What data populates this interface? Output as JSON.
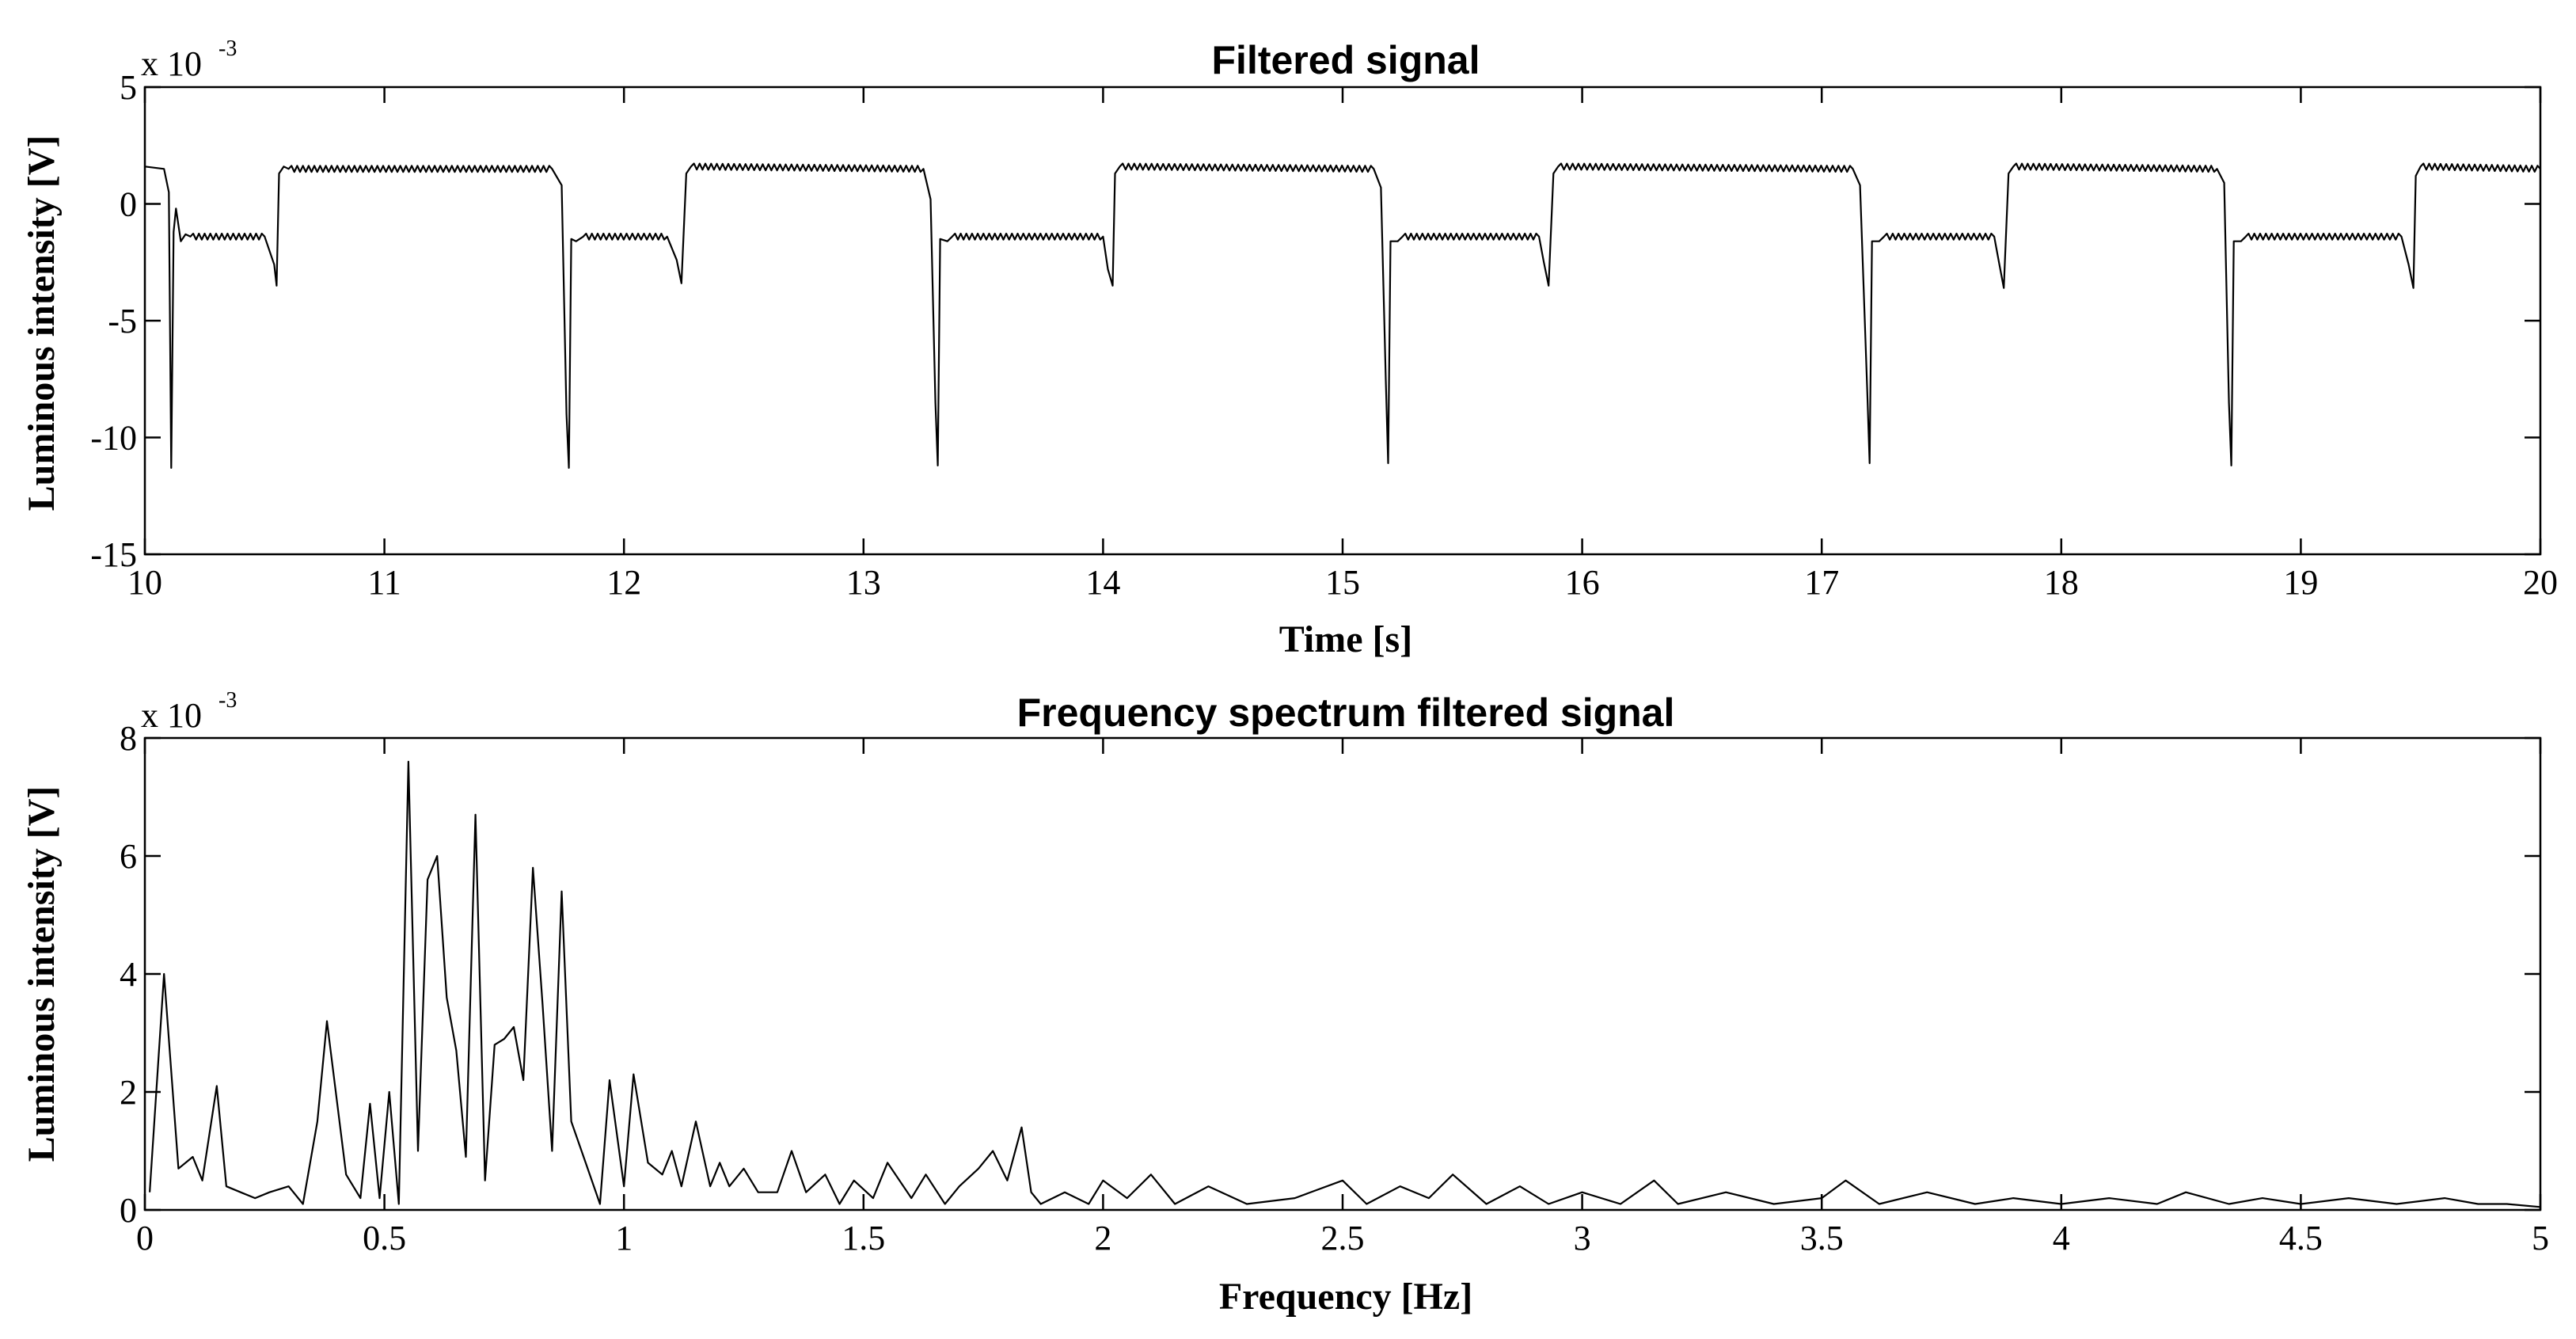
{
  "chart_data": [
    {
      "type": "line",
      "title": "Filtered signal",
      "xlabel": "Time [s]",
      "ylabel": "Luminous intensity [V]",
      "y_multiplier": {
        "base": "x 10",
        "exponent": "-3"
      },
      "xlim": [
        10,
        20
      ],
      "ylim": [
        -15,
        5
      ],
      "xticks": [
        10,
        11,
        12,
        13,
        14,
        15,
        16,
        17,
        18,
        19,
        20
      ],
      "xtick_labels": [
        "10",
        "11",
        "12",
        "13",
        "14",
        "15",
        "16",
        "17",
        "18",
        "19",
        "20"
      ],
      "yticks": [
        -15,
        -10,
        -5,
        0,
        5
      ],
      "ytick_labels": [
        "-15",
        "-10",
        "-5",
        "0",
        "5"
      ],
      "grid": false,
      "legend": "none",
      "line_color": "#000000",
      "high_level": 1.5,
      "low_level": -1.4,
      "series": [
        {
          "x": [
            10.0,
            10.08,
            10.1,
            10.11,
            10.12,
            10.13,
            10.15,
            10.17,
            10.19,
            10.5,
            10.54,
            10.55,
            10.56,
            10.58,
            10.6,
            11.7,
            11.74,
            11.76,
            11.77,
            11.78,
            11.8,
            11.83,
            12.18,
            12.22,
            12.24,
            12.26,
            12.28,
            13.25,
            13.28,
            13.3,
            13.31,
            13.32,
            13.35,
            13.37,
            14.0,
            14.02,
            14.04,
            14.05,
            14.07,
            15.13,
            15.16,
            15.18,
            15.19,
            15.2,
            15.23,
            15.25,
            15.82,
            15.84,
            15.86,
            15.88,
            15.9,
            17.13,
            17.16,
            17.19,
            17.2,
            17.21,
            17.24,
            17.26,
            17.72,
            17.74,
            17.76,
            17.78,
            17.8,
            18.65,
            18.68,
            18.7,
            18.71,
            18.72,
            18.75,
            18.77,
            19.42,
            19.45,
            19.47,
            19.48,
            19.5,
            20.0
          ],
          "y": [
            1.6,
            1.5,
            0.5,
            -11.3,
            -1.2,
            -0.2,
            -1.6,
            -1.3,
            -1.4,
            -1.4,
            -2.6,
            -3.5,
            1.3,
            1.6,
            1.5,
            1.5,
            0.8,
            -9.0,
            -11.3,
            -1.5,
            -1.6,
            -1.4,
            -1.4,
            -2.4,
            -3.4,
            1.3,
            1.6,
            1.5,
            0.2,
            -8.5,
            -11.2,
            -1.5,
            -1.6,
            -1.4,
            -1.4,
            -2.8,
            -3.5,
            1.3,
            1.6,
            1.5,
            0.7,
            -7.5,
            -11.1,
            -1.6,
            -1.6,
            -1.4,
            -1.4,
            -2.5,
            -3.5,
            1.3,
            1.6,
            1.5,
            0.8,
            -8.0,
            -11.1,
            -1.6,
            -1.6,
            -1.4,
            -1.4,
            -2.5,
            -3.6,
            1.3,
            1.6,
            1.5,
            0.9,
            -8.5,
            -11.2,
            -1.6,
            -1.6,
            -1.4,
            -1.4,
            -2.6,
            -3.6,
            1.2,
            1.6,
            1.5
          ]
        }
      ]
    },
    {
      "type": "line",
      "title": "Frequency spectrum filtered signal",
      "xlabel": "Frequency [Hz]",
      "ylabel": "Luminous intensity [V]",
      "y_multiplier": {
        "base": "x 10",
        "exponent": "-3"
      },
      "xlim": [
        0,
        5
      ],
      "ylim": [
        0,
        8
      ],
      "xticks": [
        0,
        0.5,
        1,
        1.5,
        2,
        2.5,
        3,
        3.5,
        4,
        4.5,
        5
      ],
      "xtick_labels": [
        "0",
        "0.5",
        "1",
        "1.5",
        "2",
        "2.5",
        "3",
        "3.5",
        "4",
        "4.5",
        "5"
      ],
      "yticks": [
        0,
        2,
        4,
        6,
        8
      ],
      "ytick_labels": [
        "0",
        "2",
        "4",
        "6",
        "8"
      ],
      "grid": false,
      "legend": "none",
      "line_color": "#000000",
      "series": [
        {
          "x": [
            0.01,
            0.04,
            0.07,
            0.1,
            0.12,
            0.15,
            0.17,
            0.2,
            0.23,
            0.26,
            0.3,
            0.33,
            0.36,
            0.38,
            0.42,
            0.45,
            0.47,
            0.49,
            0.51,
            0.53,
            0.55,
            0.57,
            0.59,
            0.61,
            0.63,
            0.65,
            0.67,
            0.69,
            0.71,
            0.73,
            0.75,
            0.77,
            0.79,
            0.81,
            0.83,
            0.85,
            0.87,
            0.89,
            0.92,
            0.95,
            0.97,
            1.0,
            1.02,
            1.05,
            1.08,
            1.1,
            1.12,
            1.15,
            1.18,
            1.2,
            1.22,
            1.25,
            1.28,
            1.32,
            1.35,
            1.38,
            1.42,
            1.45,
            1.48,
            1.52,
            1.55,
            1.6,
            1.63,
            1.67,
            1.7,
            1.74,
            1.77,
            1.8,
            1.83,
            1.85,
            1.87,
            1.92,
            1.97,
            2.0,
            2.05,
            2.1,
            2.15,
            2.22,
            2.3,
            2.4,
            2.5,
            2.55,
            2.62,
            2.68,
            2.73,
            2.8,
            2.87,
            2.93,
            3.0,
            3.08,
            3.15,
            3.2,
            3.3,
            3.4,
            3.5,
            3.55,
            3.62,
            3.72,
            3.82,
            3.9,
            4.0,
            4.1,
            4.2,
            4.26,
            4.35,
            4.42,
            4.5,
            4.6,
            4.7,
            4.8,
            4.87,
            4.93,
            5.0
          ],
          "y": [
            0.3,
            4.0,
            0.7,
            0.9,
            0.5,
            2.1,
            0.4,
            0.3,
            0.2,
            0.3,
            0.4,
            0.1,
            1.5,
            3.2,
            0.6,
            0.2,
            1.8,
            0.2,
            2.0,
            0.1,
            7.6,
            1.0,
            5.6,
            6.0,
            3.6,
            2.7,
            0.9,
            6.7,
            0.5,
            2.8,
            2.9,
            3.1,
            2.2,
            5.8,
            3.5,
            1.0,
            5.4,
            1.5,
            0.8,
            0.1,
            2.2,
            0.4,
            2.3,
            0.8,
            0.6,
            1.0,
            0.4,
            1.5,
            0.4,
            0.8,
            0.4,
            0.7,
            0.3,
            0.3,
            1.0,
            0.3,
            0.6,
            0.1,
            0.5,
            0.2,
            0.8,
            0.2,
            0.6,
            0.1,
            0.4,
            0.7,
            1.0,
            0.5,
            1.4,
            0.3,
            0.1,
            0.3,
            0.1,
            0.5,
            0.2,
            0.6,
            0.1,
            0.4,
            0.1,
            0.2,
            0.5,
            0.1,
            0.4,
            0.2,
            0.6,
            0.1,
            0.4,
            0.1,
            0.3,
            0.1,
            0.5,
            0.1,
            0.3,
            0.1,
            0.2,
            0.5,
            0.1,
            0.3,
            0.1,
            0.2,
            0.1,
            0.2,
            0.1,
            0.3,
            0.1,
            0.2,
            0.1,
            0.2,
            0.1,
            0.2,
            0.1,
            0.1,
            0.05
          ]
        }
      ]
    }
  ]
}
